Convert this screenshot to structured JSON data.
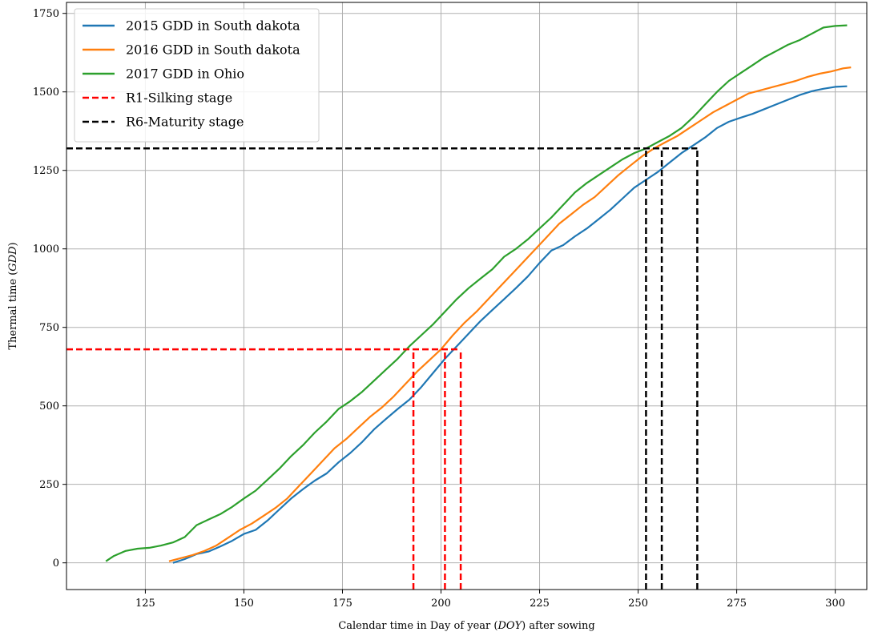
{
  "chart_data": {
    "type": "line",
    "xlabel": "Calendar time in Day of year ($DOY$) after sowing",
    "ylabel": "Thermal time ($GDD$)",
    "xlabel_parts": {
      "before": "Calendar time in Day of year (",
      "italic": "DOY",
      "after": ") after sowing"
    },
    "ylabel_parts": {
      "before": "Thermal time (",
      "italic": "GDD",
      "after": ")"
    },
    "xlim": [
      105,
      308
    ],
    "ylim": [
      -85,
      1785
    ],
    "xticks": [
      125,
      150,
      175,
      200,
      225,
      250,
      275,
      300
    ],
    "yticks": [
      0,
      250,
      500,
      750,
      1000,
      1250,
      1500,
      1750
    ],
    "grid": true,
    "legend_position": "top-left",
    "series": [
      {
        "name": "2015 GDD in South dakota",
        "color": "#1f77b4",
        "style": "solid",
        "points": [
          [
            132,
            0
          ],
          [
            135,
            12
          ],
          [
            138,
            28
          ],
          [
            141,
            36
          ],
          [
            144,
            52
          ],
          [
            147,
            70
          ],
          [
            150,
            92
          ],
          [
            153,
            105
          ],
          [
            156,
            135
          ],
          [
            159,
            170
          ],
          [
            162,
            205
          ],
          [
            165,
            235
          ],
          [
            168,
            262
          ],
          [
            171,
            285
          ],
          [
            174,
            320
          ],
          [
            177,
            350
          ],
          [
            180,
            385
          ],
          [
            183,
            425
          ],
          [
            186,
            458
          ],
          [
            189,
            490
          ],
          [
            192,
            520
          ],
          [
            195,
            560
          ],
          [
            198,
            605
          ],
          [
            201,
            650
          ],
          [
            204,
            690
          ],
          [
            207,
            730
          ],
          [
            210,
            770
          ],
          [
            213,
            805
          ],
          [
            216,
            840
          ],
          [
            219,
            875
          ],
          [
            222,
            912
          ],
          [
            225,
            955
          ],
          [
            228,
            995
          ],
          [
            231,
            1012
          ],
          [
            234,
            1040
          ],
          [
            237,
            1065
          ],
          [
            240,
            1095
          ],
          [
            243,
            1125
          ],
          [
            246,
            1160
          ],
          [
            249,
            1195
          ],
          [
            252,
            1220
          ],
          [
            255,
            1245
          ],
          [
            258,
            1275
          ],
          [
            261,
            1305
          ],
          [
            264,
            1330
          ],
          [
            267,
            1355
          ],
          [
            270,
            1385
          ],
          [
            273,
            1405
          ],
          [
            276,
            1418
          ],
          [
            279,
            1430
          ],
          [
            282,
            1445
          ],
          [
            285,
            1460
          ],
          [
            288,
            1475
          ],
          [
            291,
            1490
          ],
          [
            294,
            1502
          ],
          [
            297,
            1510
          ],
          [
            300,
            1516
          ],
          [
            303,
            1518
          ]
        ]
      },
      {
        "name": "2016 GDD in South dakota",
        "color": "#ff7f0e",
        "style": "solid",
        "points": [
          [
            131,
            5
          ],
          [
            134,
            15
          ],
          [
            137,
            25
          ],
          [
            140,
            38
          ],
          [
            143,
            55
          ],
          [
            146,
            80
          ],
          [
            149,
            105
          ],
          [
            152,
            125
          ],
          [
            155,
            150
          ],
          [
            158,
            175
          ],
          [
            161,
            205
          ],
          [
            164,
            245
          ],
          [
            167,
            285
          ],
          [
            170,
            325
          ],
          [
            173,
            365
          ],
          [
            176,
            395
          ],
          [
            179,
            430
          ],
          [
            182,
            465
          ],
          [
            185,
            495
          ],
          [
            188,
            530
          ],
          [
            191,
            570
          ],
          [
            194,
            610
          ],
          [
            197,
            645
          ],
          [
            200,
            680
          ],
          [
            203,
            725
          ],
          [
            206,
            765
          ],
          [
            209,
            800
          ],
          [
            212,
            840
          ],
          [
            215,
            880
          ],
          [
            218,
            920
          ],
          [
            221,
            960
          ],
          [
            224,
            1000
          ],
          [
            227,
            1040
          ],
          [
            230,
            1080
          ],
          [
            233,
            1110
          ],
          [
            236,
            1140
          ],
          [
            239,
            1165
          ],
          [
            242,
            1200
          ],
          [
            245,
            1235
          ],
          [
            248,
            1265
          ],
          [
            251,
            1295
          ],
          [
            254,
            1320
          ],
          [
            257,
            1340
          ],
          [
            260,
            1360
          ],
          [
            263,
            1385
          ],
          [
            266,
            1410
          ],
          [
            269,
            1435
          ],
          [
            272,
            1455
          ],
          [
            275,
            1475
          ],
          [
            278,
            1495
          ],
          [
            281,
            1505
          ],
          [
            284,
            1515
          ],
          [
            287,
            1525
          ],
          [
            290,
            1535
          ],
          [
            293,
            1548
          ],
          [
            296,
            1558
          ],
          [
            299,
            1565
          ],
          [
            302,
            1575
          ],
          [
            304,
            1578
          ]
        ]
      },
      {
        "name": "2017 GDD in Ohio",
        "color": "#2ca02c",
        "style": "solid",
        "points": [
          [
            115,
            5
          ],
          [
            117,
            22
          ],
          [
            120,
            38
          ],
          [
            123,
            45
          ],
          [
            126,
            48
          ],
          [
            129,
            55
          ],
          [
            132,
            65
          ],
          [
            135,
            82
          ],
          [
            138,
            120
          ],
          [
            141,
            138
          ],
          [
            144,
            155
          ],
          [
            147,
            178
          ],
          [
            150,
            205
          ],
          [
            153,
            230
          ],
          [
            156,
            265
          ],
          [
            159,
            300
          ],
          [
            162,
            340
          ],
          [
            165,
            375
          ],
          [
            168,
            415
          ],
          [
            171,
            450
          ],
          [
            174,
            490
          ],
          [
            177,
            515
          ],
          [
            180,
            545
          ],
          [
            183,
            580
          ],
          [
            186,
            615
          ],
          [
            189,
            650
          ],
          [
            192,
            690
          ],
          [
            195,
            725
          ],
          [
            198,
            760
          ],
          [
            201,
            800
          ],
          [
            204,
            840
          ],
          [
            207,
            875
          ],
          [
            210,
            905
          ],
          [
            213,
            935
          ],
          [
            216,
            975
          ],
          [
            219,
            1000
          ],
          [
            222,
            1030
          ],
          [
            225,
            1065
          ],
          [
            228,
            1100
          ],
          [
            231,
            1140
          ],
          [
            234,
            1180
          ],
          [
            237,
            1210
          ],
          [
            240,
            1235
          ],
          [
            243,
            1260
          ],
          [
            246,
            1285
          ],
          [
            249,
            1305
          ],
          [
            252,
            1320
          ],
          [
            255,
            1340
          ],
          [
            258,
            1360
          ],
          [
            261,
            1385
          ],
          [
            264,
            1420
          ],
          [
            267,
            1460
          ],
          [
            270,
            1500
          ],
          [
            273,
            1535
          ],
          [
            276,
            1560
          ],
          [
            279,
            1585
          ],
          [
            282,
            1610
          ],
          [
            285,
            1630
          ],
          [
            288,
            1650
          ],
          [
            291,
            1665
          ],
          [
            294,
            1685
          ],
          [
            297,
            1705
          ],
          [
            300,
            1710
          ],
          [
            303,
            1712
          ]
        ]
      },
      {
        "name": "R1-Silking stage",
        "color": "#ff0000",
        "style": "dashed",
        "segments": [
          [
            [
              105,
              680
            ],
            [
              205,
              680
            ]
          ],
          [
            [
              193,
              -85
            ],
            [
              193,
              680
            ]
          ],
          [
            [
              201,
              -85
            ],
            [
              201,
              680
            ]
          ],
          [
            [
              205,
              -85
            ],
            [
              205,
              680
            ]
          ]
        ]
      },
      {
        "name": "R6-Maturity stage",
        "color": "#000000",
        "style": "dashed",
        "segments": [
          [
            [
              105,
              1320
            ],
            [
              265,
              1320
            ]
          ],
          [
            [
              252,
              -85
            ],
            [
              252,
              1320
            ]
          ],
          [
            [
              256,
              -85
            ],
            [
              256,
              1320
            ]
          ],
          [
            [
              265,
              -85
            ],
            [
              265,
              1320
            ]
          ]
        ]
      }
    ]
  }
}
